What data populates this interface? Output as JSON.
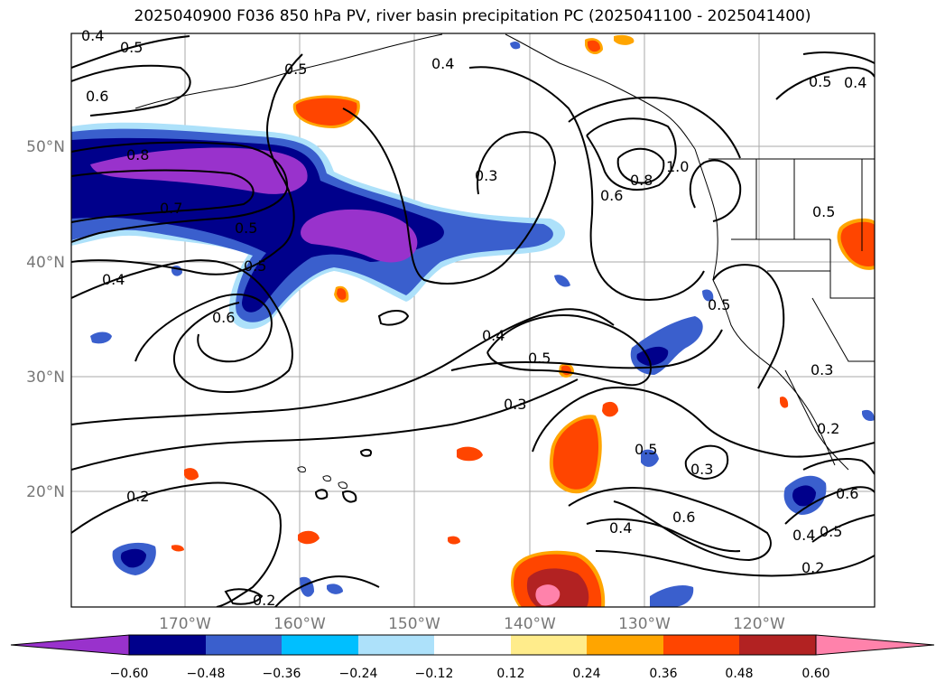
{
  "title": "2025040900 F036 850 hPa PV, river basin precipitation PC (2025041100 - 2025041400)",
  "map": {
    "lat_labels": [
      "50°N",
      "40°N",
      "30°N",
      "20°N"
    ],
    "lon_labels": [
      "170°W",
      "160°W",
      "150°W",
      "140°W",
      "130°W",
      "120°W"
    ],
    "contour_labels": [
      "0.5",
      "0.4",
      "0.6",
      "0.8",
      "0.7",
      "0.5",
      "0.4",
      "0.5",
      "0.6",
      "0.3",
      "0.4",
      "0.5",
      "0.3",
      "0.6",
      "0.8",
      "1.0",
      "0.5",
      "0.4",
      "0.5",
      "0.5",
      "0.3",
      "0.2",
      "0.5",
      "0.3",
      "0.6",
      "0.4",
      "0.2",
      "0.5",
      "0.4",
      "0.6",
      "0.2",
      "0.2",
      "0.4",
      "0.5"
    ],
    "colors": {
      "land_outline": "#000000",
      "grid": "#aaaaaa"
    }
  },
  "colorbar": {
    "ticks": [
      "−0.60",
      "−0.48",
      "−0.36",
      "−0.24",
      "−0.12",
      "0.12",
      "0.24",
      "0.36",
      "0.48",
      "0.60"
    ],
    "colors": [
      "#9932CC",
      "#00008B",
      "#3A5FCD",
      "#00BFFF",
      "#ADE1FA",
      "#FFFFFF",
      "#FFEC8B",
      "#FFA500",
      "#FF4500",
      "#B22222",
      "#FF82AB"
    ]
  }
}
